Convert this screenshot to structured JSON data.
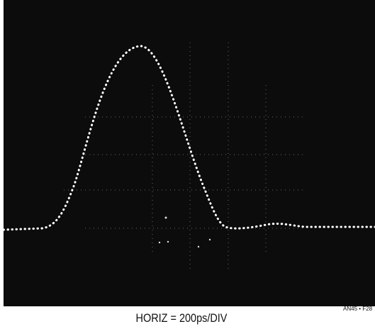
{
  "caption": "HORIZ = 200ps/DIV",
  "figure_id": "AN45 • F28"
}
